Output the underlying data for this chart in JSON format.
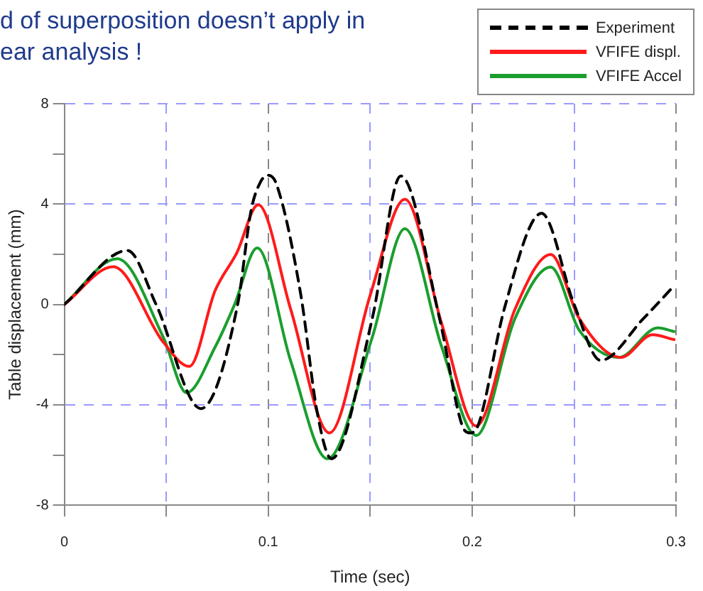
{
  "chart_data": {
    "type": "line",
    "title": "d of superposition doesn’t apply in\near analysis !",
    "xlabel": "Time (sec)",
    "ylabel": "Table displacement (mm)",
    "xlim": [
      0,
      0.3
    ],
    "xticks": [
      0,
      {
        "value": 0.05,
        "label": null
      },
      0.1,
      {
        "value": 0.15,
        "label": null
      },
      0.2,
      {
        "value": 0.25,
        "label": null
      },
      0.3
    ],
    "ylim": [
      -8,
      8
    ],
    "yticks": [
      -8,
      {
        "value": -6,
        "label": null
      },
      -4,
      {
        "value": -2,
        "label": null
      },
      0,
      {
        "value": 2,
        "label": null
      },
      4,
      {
        "value": 6,
        "label": null
      },
      8
    ],
    "grid": true,
    "legend": "top right",
    "marker": "none",
    "series": [
      {
        "name": "Experiment",
        "color": "#000000",
        "line_style": "dashed",
        "x": [
          0,
          0.031,
          0.045,
          0.067,
          0.085,
          0.0916,
          0.096,
          0.0998,
          0.104,
          0.116,
          0.124,
          0.131,
          0.151,
          0.165,
          0.184,
          0.195,
          0.199,
          0.203,
          0.216,
          0.234,
          0.25,
          0.263,
          0.284,
          0.299
        ],
        "values": [
          0,
          2.15,
          0,
          -4.15,
          0,
          3.75,
          4.85,
          5.15,
          4.8,
          0.37,
          -4.3,
          -6.15,
          -0.56,
          5.12,
          -0.56,
          -4.8,
          -5.12,
          -4.8,
          -0.1,
          3.63,
          0,
          -2.23,
          -0.56,
          0.74
        ]
      },
      {
        "name": "VFIFE displ.",
        "color": "#ff1a1a",
        "line_style": "solid",
        "x": [
          0,
          0.024,
          0.0485,
          0.0613,
          0.074,
          0.0846,
          0.0951,
          0.111,
          0.13,
          0.15,
          0.167,
          0.185,
          0.202,
          0.221,
          0.2385,
          0.2525,
          0.273,
          0.2885,
          0.299
        ],
        "values": [
          0,
          1.5,
          -1.5,
          -2.47,
          0.56,
          2.06,
          3.97,
          -0.19,
          -5.12,
          0.37,
          4.19,
          -0.75,
          -4.84,
          -0.19,
          1.99,
          -0.56,
          -2.11,
          -1.21,
          -1.4
        ]
      },
      {
        "name": "VFIFE Accel",
        "color": "#1a9e2e",
        "line_style": "solid",
        "x": [
          0,
          0.026,
          0.0485,
          0.06,
          0.074,
          0.0835,
          0.0946,
          0.111,
          0.129,
          0.151,
          0.167,
          0.185,
          0.202,
          0.221,
          0.2385,
          0.2525,
          0.272,
          0.291,
          0.299
        ],
        "values": [
          0,
          1.82,
          -1.3,
          -3.52,
          -1.69,
          0,
          2.25,
          -2.25,
          -6.15,
          -1.31,
          3.02,
          -1.68,
          -5.22,
          -0.56,
          1.49,
          -1.03,
          -2.11,
          -0.93,
          -1.08
        ]
      }
    ]
  }
}
